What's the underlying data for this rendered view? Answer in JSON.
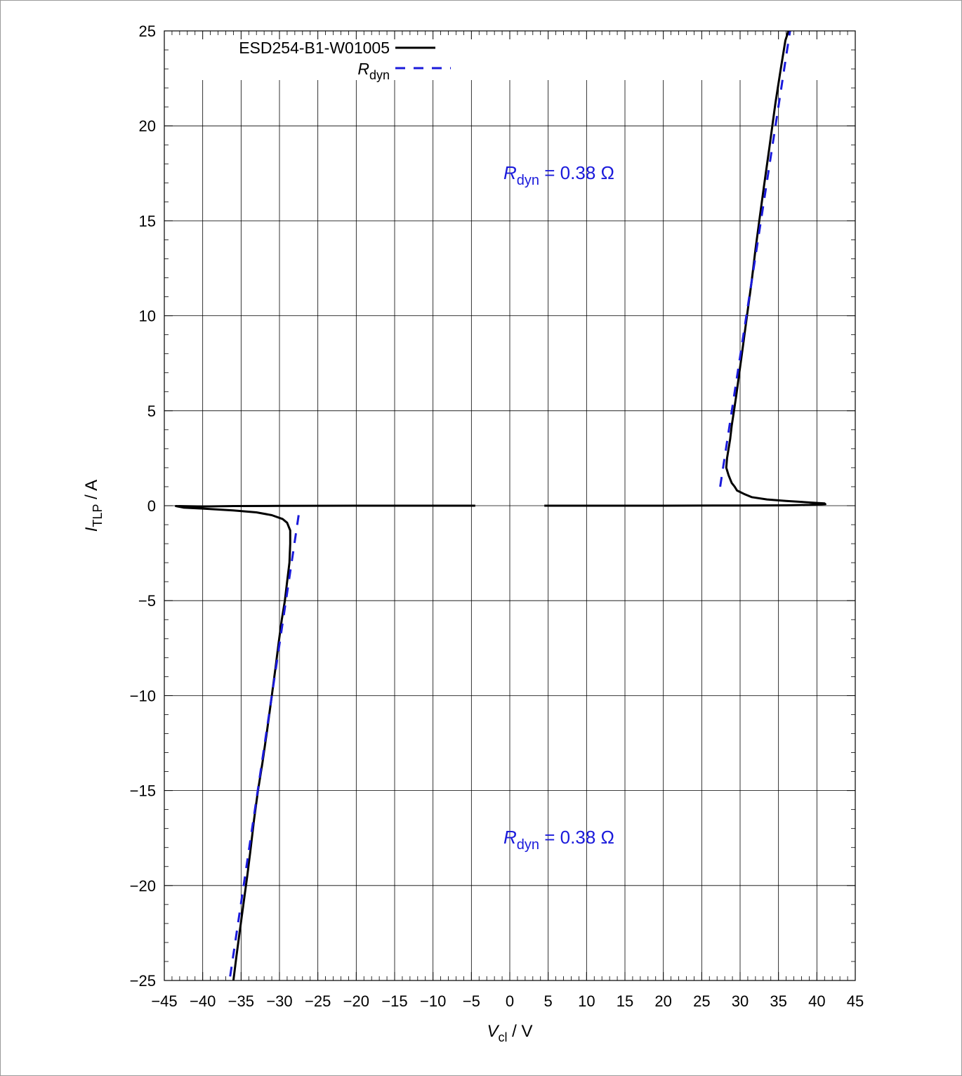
{
  "chart_data": {
    "type": "line",
    "xlabel": {
      "main": "V",
      "sub": "cl",
      "unit": " / V"
    },
    "ylabel": {
      "main": "I",
      "sub": "TLP",
      "unit": " / A"
    },
    "xlim": [
      -45,
      45
    ],
    "ylim": [
      -25,
      25
    ],
    "x_ticks": [
      -45,
      -40,
      -35,
      -30,
      -25,
      -20,
      -15,
      -10,
      -5,
      0,
      5,
      10,
      15,
      20,
      25,
      30,
      35,
      40,
      45
    ],
    "y_ticks": [
      -25,
      -20,
      -15,
      -10,
      -5,
      0,
      5,
      10,
      15,
      20,
      25
    ],
    "grid": true,
    "legend_position": "top-left",
    "colors": {
      "measured": "#000000",
      "fit": "#1a1adb"
    },
    "series": [
      {
        "name": "ESD254-B1-W01005",
        "style": "solid",
        "segments": [
          [
            [
              4.5,
              0.0
            ],
            [
              10,
              0.0
            ],
            [
              20,
              0.0
            ],
            [
              30,
              0.01
            ],
            [
              36,
              0.02
            ],
            [
              39,
              0.04
            ],
            [
              41.1,
              0.08
            ],
            [
              41.0,
              0.12
            ],
            [
              39.5,
              0.16
            ],
            [
              36,
              0.25
            ],
            [
              33.5,
              0.33
            ],
            [
              31.5,
              0.45
            ],
            [
              30.5,
              0.62
            ],
            [
              29.6,
              0.8
            ],
            [
              29.3,
              1.0
            ],
            [
              28.9,
              1.2
            ],
            [
              28.5,
              1.6
            ],
            [
              28.2,
              2.0
            ],
            [
              28.3,
              2.5
            ],
            [
              28.5,
              3.0
            ],
            [
              28.7,
              3.5
            ],
            [
              28.9,
              4.2
            ],
            [
              29.2,
              5.0
            ],
            [
              29.5,
              5.8
            ],
            [
              29.9,
              7.0
            ],
            [
              30.4,
              8.5
            ],
            [
              30.9,
              10.0
            ],
            [
              31.5,
              11.8
            ],
            [
              32.0,
              13.5
            ],
            [
              32.5,
              15.0
            ],
            [
              33.1,
              16.8
            ],
            [
              33.8,
              18.8
            ],
            [
              34.2,
              20.0
            ],
            [
              34.6,
              21.2
            ],
            [
              35.3,
              23.0
            ],
            [
              35.9,
              24.5
            ],
            [
              36.3,
              25.0
            ]
          ],
          [
            [
              -4.5,
              0.0
            ],
            [
              -10,
              0.0
            ],
            [
              -20,
              0.0
            ],
            [
              -30,
              -0.01
            ],
            [
              -36,
              -0.02
            ],
            [
              -40,
              -0.04
            ],
            [
              -43.5,
              -0.02
            ],
            [
              -42.5,
              -0.1
            ],
            [
              -40,
              -0.15
            ],
            [
              -36,
              -0.25
            ],
            [
              -33,
              -0.35
            ],
            [
              -31,
              -0.5
            ],
            [
              -29.6,
              -0.7
            ],
            [
              -29.0,
              -0.9
            ],
            [
              -28.6,
              -1.3
            ],
            [
              -28.6,
              -2.0
            ],
            [
              -28.7,
              -3.0
            ],
            [
              -29.0,
              -4.0
            ],
            [
              -29.3,
              -5.0
            ],
            [
              -29.7,
              -6.0
            ],
            [
              -30.1,
              -7.2
            ],
            [
              -30.5,
              -8.5
            ],
            [
              -31.0,
              -10.0
            ],
            [
              -31.6,
              -11.8
            ],
            [
              -32.2,
              -13.5
            ],
            [
              -32.8,
              -15.0
            ],
            [
              -33.3,
              -16.5
            ],
            [
              -33.8,
              -18.2
            ],
            [
              -34.2,
              -19.5
            ],
            [
              -34.7,
              -21.0
            ],
            [
              -35.2,
              -22.5
            ],
            [
              -35.6,
              -23.7
            ],
            [
              -36.0,
              -25.0
            ]
          ]
        ]
      },
      {
        "name": "R_dyn",
        "style": "dashed",
        "segments": [
          [
            [
              27.4,
              1.0
            ],
            [
              36.5,
              25.0
            ]
          ],
          [
            [
              -27.5,
              -0.5
            ],
            [
              -36.5,
              -25.0
            ]
          ]
        ]
      }
    ],
    "legend": [
      {
        "label": "ESD254-B1-W01005",
        "series": 0
      },
      {
        "label_main": "R",
        "label_sub": "dyn",
        "series": 1
      }
    ],
    "annotations": [
      {
        "main": "R",
        "sub": "dyn",
        "text": " = 0.38 Ω",
        "x": 3.2,
        "y": 17.5
      },
      {
        "main": "R",
        "sub": "dyn",
        "text": " = 0.38 Ω",
        "x": 3.2,
        "y": -17.5
      }
    ]
  }
}
